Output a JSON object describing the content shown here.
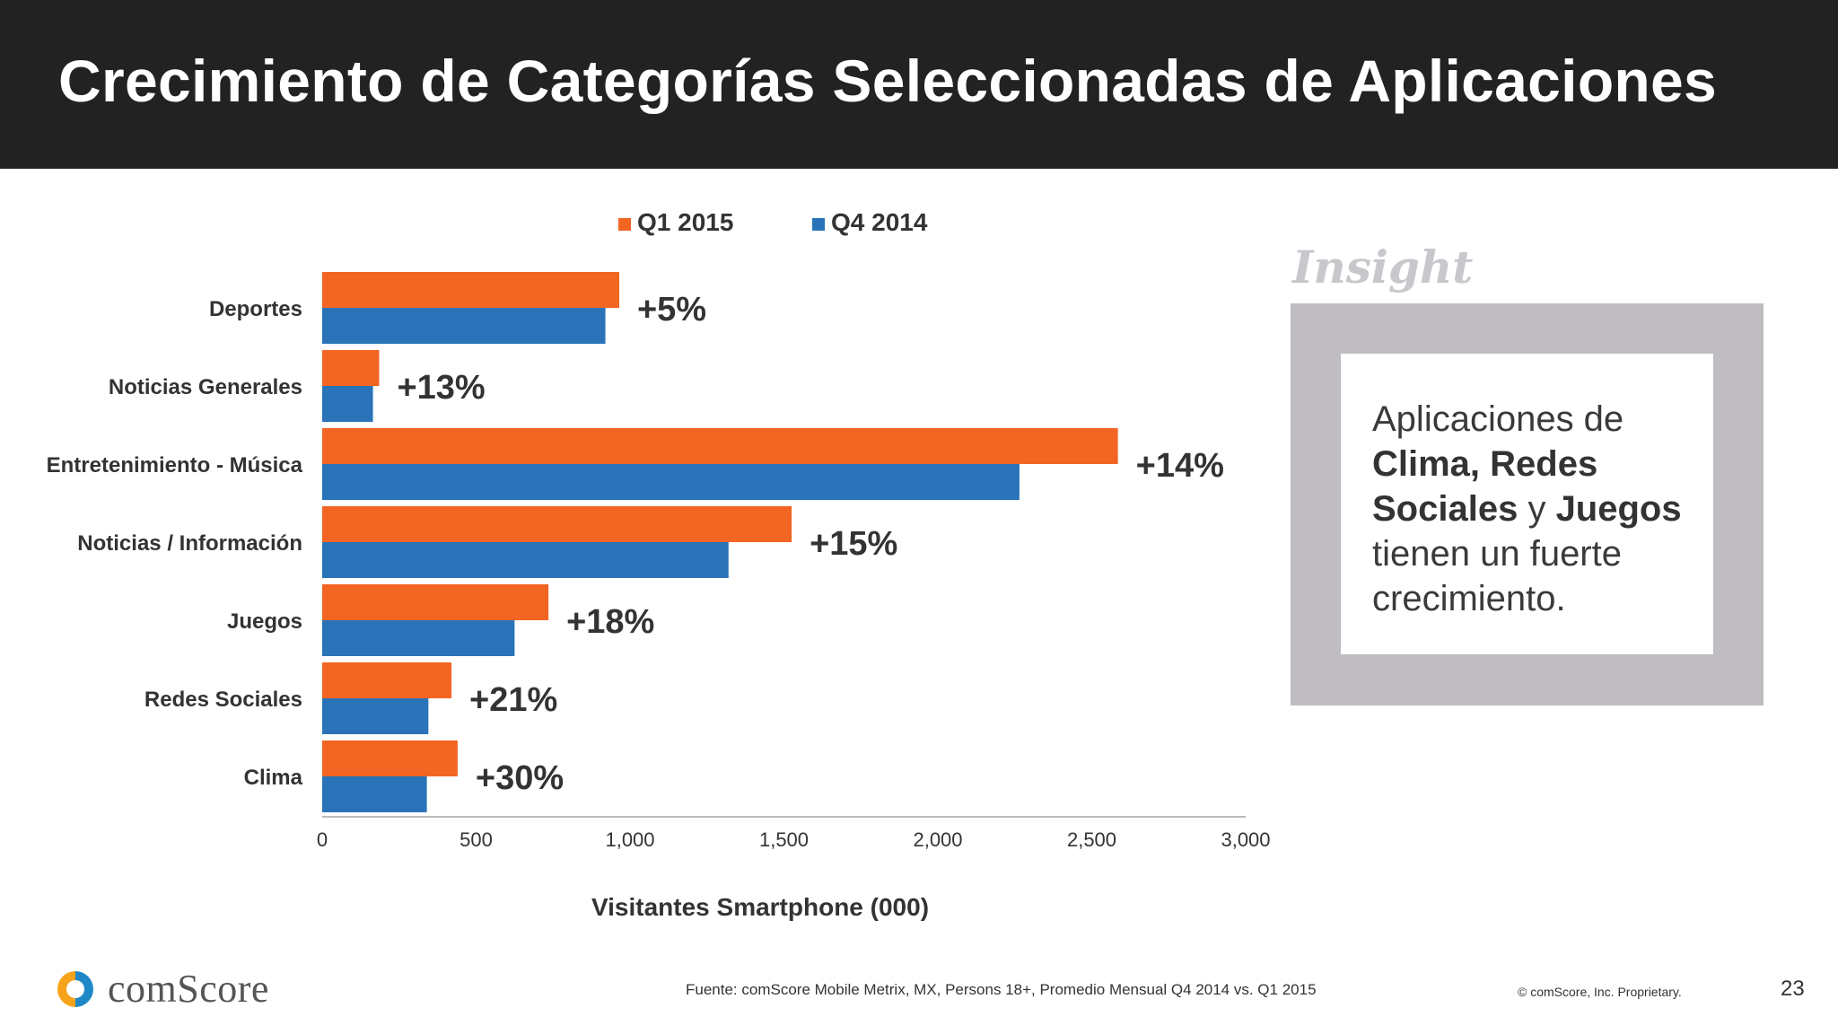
{
  "slide": {
    "title": "Crecimiento de Categorías Seleccionadas de Aplicaciones",
    "page_number": "23"
  },
  "insight": {
    "label": "Insight",
    "segments": [
      {
        "text": "Aplicaciones de ",
        "bold": false
      },
      {
        "text": "Clima, Redes Sociales",
        "bold": true
      },
      {
        "text": " y ",
        "bold": false
      },
      {
        "text": "Juegos",
        "bold": true
      },
      {
        "text": " tienen un fuerte crecimiento.",
        "bold": false
      }
    ]
  },
  "footer": {
    "brand": "comScore",
    "source": "Fuente: comScore Mobile Metrix, MX, Persons 18+, Promedio Mensual Q4 2014  vs. Q1 2015",
    "copyright": "© comScore, Inc. Proprietary."
  },
  "colors": {
    "header_bg": "#222222",
    "q1_2015": "#f26522",
    "q4_2014": "#2a73b8",
    "insight_frame": "#bfbdc1"
  },
  "chart_data": {
    "type": "bar",
    "orientation": "horizontal",
    "categories": [
      "Deportes",
      "Noticias Generales",
      "Entretenimiento - Música",
      "Noticias / Información",
      "Juegos",
      "Redes Sociales",
      "Clima"
    ],
    "series": [
      {
        "name": "Q1 2015",
        "color": "#f26522",
        "values": [
          965,
          185,
          2585,
          1525,
          735,
          420,
          440
        ]
      },
      {
        "name": "Q4 2014",
        "color": "#2a73b8",
        "values": [
          920,
          165,
          2265,
          1320,
          625,
          345,
          340
        ]
      }
    ],
    "growth_labels": [
      "+5%",
      "+13%",
      "+14%",
      "+15%",
      "+18%",
      "+21%",
      "+30%"
    ],
    "xlabel": "Visitantes Smartphone (000)",
    "ylabel": "",
    "xlim": [
      0,
      3000
    ],
    "xticks": [
      "0",
      "500",
      "1,000",
      "1,500",
      "2,000",
      "2,500",
      "3,000"
    ],
    "legend_position": "top",
    "grid": false
  }
}
